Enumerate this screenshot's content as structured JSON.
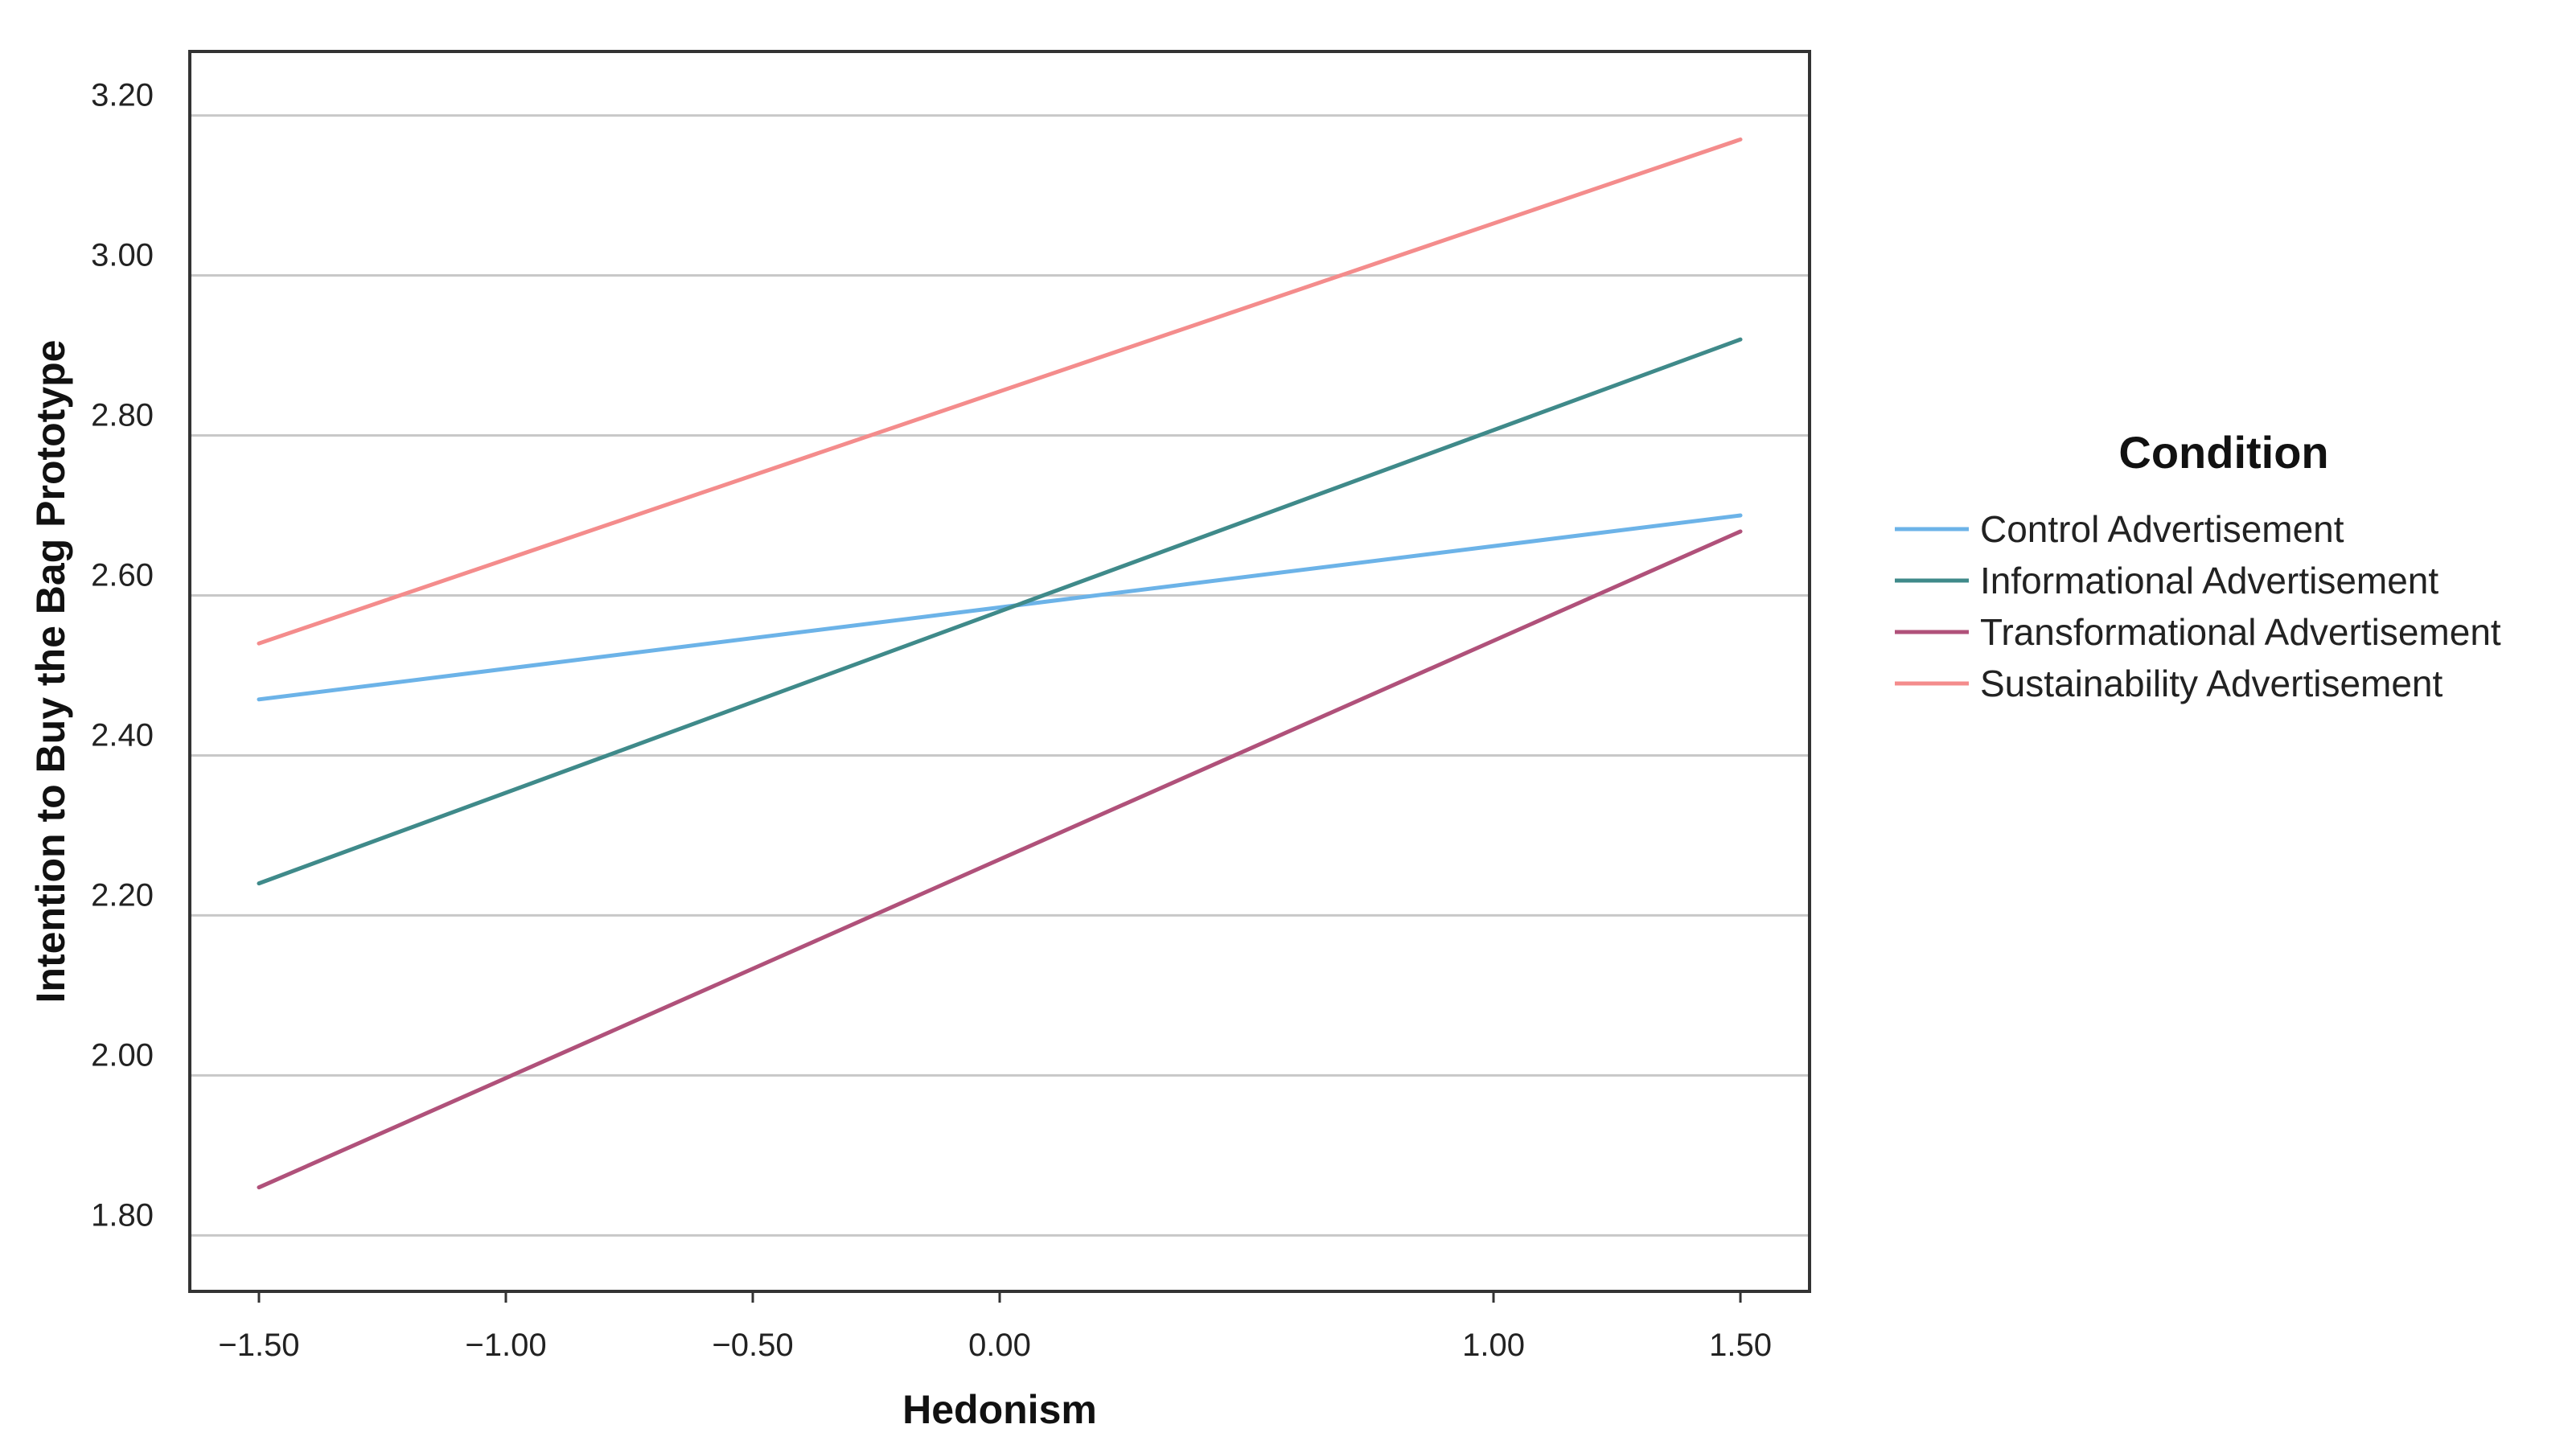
{
  "chart_data": {
    "type": "line",
    "xlabel": "Hedonism",
    "ylabel": "Intention to Buy the Bag Prototype",
    "xlim": [
      -1.64,
      1.64
    ],
    "ylim": [
      1.73,
      3.28
    ],
    "x_ticks": [
      -1.5,
      -1.0,
      -0.5,
      0.0,
      1.0,
      1.5
    ],
    "x_tick_labels": [
      "−1.50",
      "−1.00",
      "−0.50",
      "0.00",
      "1.00",
      "1.50"
    ],
    "y_ticks": [
      1.8,
      2.0,
      2.2,
      2.4,
      2.6,
      2.8,
      3.0,
      3.2
    ],
    "y_tick_labels": [
      "1.80",
      "2.00",
      "2.20",
      "2.40",
      "2.60",
      "2.80",
      "3.00",
      "3.20"
    ],
    "grid": "horizontal",
    "legend": {
      "title": "Condition",
      "placement": "right"
    },
    "series": [
      {
        "name": "Control Advertisement",
        "color": "#6cb3e8",
        "x": [
          -1.5,
          1.5
        ],
        "y": [
          2.47,
          2.7
        ]
      },
      {
        "name": "Informational Advertisement",
        "color": "#3f8a8a",
        "x": [
          -1.5,
          1.5
        ],
        "y": [
          2.24,
          2.92
        ]
      },
      {
        "name": "Transformational Advertisement",
        "color": "#b0517a",
        "x": [
          -1.5,
          1.5
        ],
        "y": [
          1.86,
          2.68
        ]
      },
      {
        "name": "Sustainability Advertisement",
        "color": "#f48c8c",
        "x": [
          -1.5,
          1.5
        ],
        "y": [
          2.54,
          3.17
        ]
      }
    ]
  }
}
